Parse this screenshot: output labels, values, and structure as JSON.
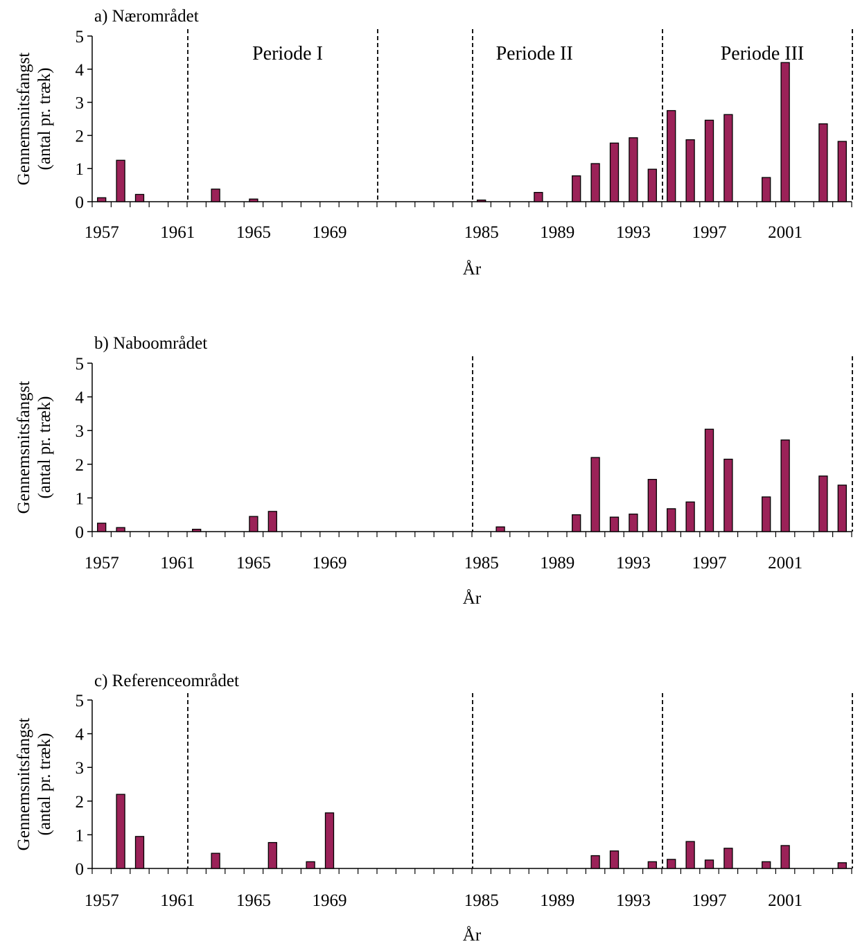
{
  "chart_data": [
    {
      "type": "bar",
      "title": "a) Nærområdet",
      "ylabel_line1": "Gennemsnitsfangst",
      "ylabel_line2": "(antal pr. træk)",
      "xlabel": "År",
      "ylim": [
        0,
        5
      ],
      "yticks": [
        "0",
        "1",
        "2",
        "3",
        "4",
        "5"
      ],
      "xtick_labels": [
        "1957",
        "1961",
        "1965",
        "1969",
        "1985",
        "1989",
        "1993",
        "1997",
        "2001"
      ],
      "categories": [
        "1957",
        "1958",
        "1959",
        "1960",
        "1961",
        "1962",
        "1963",
        "1964",
        "1965",
        "1966",
        "1967",
        "1968",
        "1969",
        "1970",
        "1971",
        "1972",
        "1981",
        "1982",
        "1983",
        "1984",
        "1985",
        "1986",
        "1987",
        "1988",
        "1989",
        "1990",
        "1991",
        "1992",
        "1993",
        "1994",
        "1995",
        "1996",
        "1997",
        "1998",
        "1999",
        "2000",
        "2001",
        "2002",
        "2003",
        "2004"
      ],
      "values": [
        0.12,
        1.25,
        0.22,
        0,
        0,
        0,
        0.38,
        0,
        0.08,
        0,
        0,
        0,
        0,
        0,
        0,
        0,
        0,
        0,
        0,
        0,
        0.05,
        0,
        0,
        0.28,
        0,
        0.78,
        1.15,
        1.77,
        1.93,
        0.98,
        2.75,
        1.87,
        2.46,
        2.63,
        0,
        0.73,
        4.2,
        0,
        2.35,
        1.82
      ],
      "dividers_after": [
        "1961",
        "1971",
        "1984",
        "1994",
        "2004"
      ],
      "periods": [
        {
          "label": "Periode I",
          "from": "1962",
          "to": "1971"
        },
        {
          "label": "Periode II",
          "from": "1981",
          "to": "1994"
        },
        {
          "label": "Periode III",
          "from": "1995",
          "to": "2004"
        }
      ],
      "bar_color": "#9b2258"
    },
    {
      "type": "bar",
      "title": "b) Naboområdet",
      "ylabel_line1": "Gennemsnitsfangst",
      "ylabel_line2": "(antal pr. træk)",
      "xlabel": "År",
      "ylim": [
        0,
        5
      ],
      "yticks": [
        "0",
        "1",
        "2",
        "3",
        "4",
        "5"
      ],
      "xtick_labels": [
        "1957",
        "1961",
        "1965",
        "1969",
        "1985",
        "1989",
        "1993",
        "1997",
        "2001"
      ],
      "categories": [
        "1957",
        "1958",
        "1959",
        "1960",
        "1961",
        "1962",
        "1963",
        "1964",
        "1965",
        "1966",
        "1967",
        "1968",
        "1969",
        "1970",
        "1971",
        "1972",
        "1981",
        "1982",
        "1983",
        "1984",
        "1985",
        "1986",
        "1987",
        "1988",
        "1989",
        "1990",
        "1991",
        "1992",
        "1993",
        "1994",
        "1995",
        "1996",
        "1997",
        "1998",
        "1999",
        "2000",
        "2001",
        "2002",
        "2003",
        "2004"
      ],
      "values": [
        0.25,
        0.12,
        0,
        0,
        0,
        0.07,
        0,
        0,
        0.45,
        0.6,
        0,
        0,
        0,
        0,
        0,
        0,
        0,
        0,
        0,
        0,
        0,
        0.14,
        0,
        0,
        0,
        0.5,
        2.2,
        0.43,
        0.52,
        1.55,
        0.68,
        0.88,
        3.04,
        2.15,
        0,
        1.03,
        2.72,
        0,
        1.65,
        1.38
      ],
      "dividers_after": [
        "1984",
        "2004"
      ],
      "periods": [],
      "bar_color": "#9b2258"
    },
    {
      "type": "bar",
      "title": "c) Referenceområdet",
      "ylabel_line1": "Gennemsnitsfangst",
      "ylabel_line2": "(antal pr. træk)",
      "xlabel": "År",
      "ylim": [
        0,
        5
      ],
      "yticks": [
        "0",
        "1",
        "2",
        "3",
        "4",
        "5"
      ],
      "xtick_labels": [
        "1957",
        "1961",
        "1965",
        "1969",
        "1985",
        "1989",
        "1993",
        "1997",
        "2001"
      ],
      "categories": [
        "1957",
        "1958",
        "1959",
        "1960",
        "1961",
        "1962",
        "1963",
        "1964",
        "1965",
        "1966",
        "1967",
        "1968",
        "1969",
        "1970",
        "1971",
        "1972",
        "1981",
        "1982",
        "1983",
        "1984",
        "1985",
        "1986",
        "1987",
        "1988",
        "1989",
        "1990",
        "1991",
        "1992",
        "1993",
        "1994",
        "1995",
        "1996",
        "1997",
        "1998",
        "1999",
        "2000",
        "2001",
        "2002",
        "2003",
        "2004"
      ],
      "values": [
        0,
        2.2,
        0.95,
        0,
        0,
        0,
        0.45,
        0,
        0,
        0.77,
        0,
        0.2,
        1.65,
        0,
        0,
        0,
        0,
        0,
        0,
        0,
        0,
        0,
        0,
        0,
        0,
        0,
        0.38,
        0.52,
        0,
        0.2,
        0.27,
        0.8,
        0.25,
        0.6,
        0,
        0.2,
        0.68,
        0,
        0,
        0.17
      ],
      "dividers_after": [
        "1961",
        "1984",
        "1994",
        "2004"
      ],
      "periods": [],
      "bar_color": "#9b2258"
    }
  ]
}
